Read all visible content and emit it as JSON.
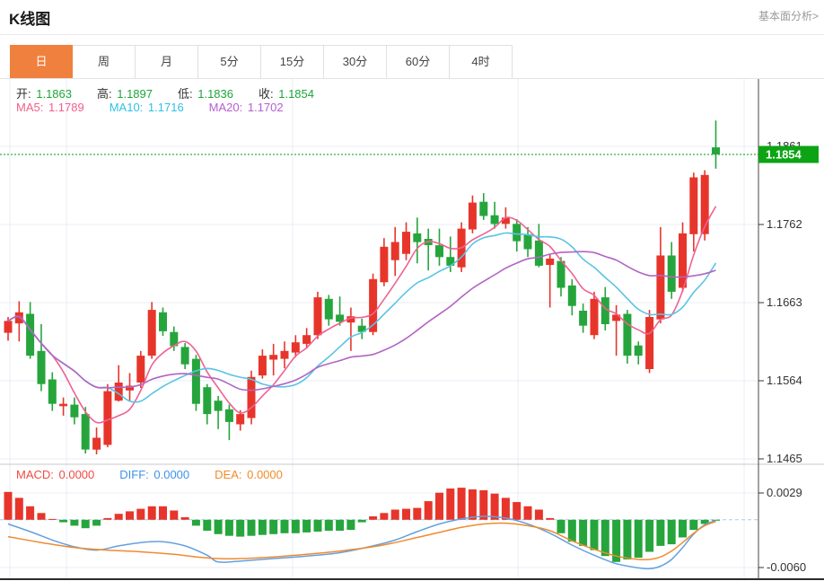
{
  "header": {
    "title": "K线图",
    "link": "基本面分析>"
  },
  "tabs": {
    "items": [
      "日",
      "周",
      "月",
      "5分",
      "15分",
      "30分",
      "60分",
      "4时"
    ],
    "selected": 0
  },
  "ohlc_legend": {
    "items": [
      {
        "label": "开",
        "value": "1.1863"
      },
      {
        "label": "高",
        "value": "1.1897"
      },
      {
        "label": "低",
        "value": "1.1836"
      },
      {
        "label": "收",
        "value": "1.1854"
      }
    ],
    "value_color": "#1ca53a"
  },
  "ma_legend": {
    "items": [
      {
        "label": "MA5",
        "value": "1.1789",
        "color": "#f25f8a"
      },
      {
        "label": "MA10",
        "value": "1.1716",
        "color": "#2fc1e6"
      },
      {
        "label": "MA20",
        "value": "1.1702",
        "color": "#b45fd0"
      }
    ]
  },
  "macd_legend": {
    "items": [
      {
        "label": "MACD",
        "value": "0.0000",
        "color": "#ef4b43"
      },
      {
        "label": "DIFF",
        "value": "0.0000",
        "color": "#3f93ea"
      },
      {
        "label": "DEA",
        "value": "0.0000",
        "color": "#f08b28"
      }
    ]
  },
  "current_price": {
    "value": "1.1854",
    "badge_color": "#0ca414",
    "line_color": "#2db04a"
  },
  "colors": {
    "candle_up": "#e7352b",
    "candle_down": "#26a53c",
    "ma5": "#ef6292",
    "ma10": "#58c4e4",
    "ma20": "#b264c4",
    "diff_line": "#64a0e0",
    "dea_line": "#ef8b30",
    "grid": "#e9eef4",
    "axis_text": "#333333",
    "axis_border": "#444444",
    "separator": "#c9c9c9",
    "bottom_border": "#2b2b2b",
    "zero_dash": "#9fd0e8"
  },
  "chart_data": {
    "type": "candlestick",
    "panels": [
      "price",
      "macd"
    ],
    "price_axis_ticks": [
      "1.1861",
      "1.1762",
      "1.1663",
      "1.1564",
      "1.1465"
    ],
    "macd_axis_ticks": [
      "0.0029",
      "-0.0060"
    ],
    "ylim_price": [
      1.1465,
      1.1861
    ],
    "candles": [
      [
        1.1628,
        1.1648,
        1.1618,
        1.1643
      ],
      [
        1.164,
        1.1668,
        1.1617,
        1.1654
      ],
      [
        1.1652,
        1.1667,
        1.1595,
        1.1599
      ],
      [
        1.1605,
        1.1639,
        1.1554,
        1.1563
      ],
      [
        1.1569,
        1.1578,
        1.1529,
        1.1538
      ],
      [
        1.1535,
        1.1546,
        1.1523,
        1.1538
      ],
      [
        1.1537,
        1.1546,
        1.1512,
        1.1521
      ],
      [
        1.1525,
        1.1534,
        1.1475,
        1.148
      ],
      [
        1.148,
        1.1508,
        1.1474,
        1.1495
      ],
      [
        1.1486,
        1.1563,
        1.1483,
        1.1554
      ],
      [
        1.1542,
        1.1587,
        1.1541,
        1.1565
      ],
      [
        1.1555,
        1.1577,
        1.1541,
        1.1561
      ],
      [
        1.1565,
        1.1605,
        1.1558,
        1.1599
      ],
      [
        1.1599,
        1.1667,
        1.1595,
        1.1657
      ],
      [
        1.1654,
        1.166,
        1.1624,
        1.163
      ],
      [
        1.1629,
        1.1636,
        1.1605,
        1.1611
      ],
      [
        1.161,
        1.1615,
        1.1582,
        1.1588
      ],
      [
        1.1595,
        1.16,
        1.1529,
        1.1538
      ],
      [
        1.1559,
        1.1563,
        1.1512,
        1.1525
      ],
      [
        1.1542,
        1.1548,
        1.1506,
        1.1529
      ],
      [
        1.1531,
        1.1537,
        1.1492,
        1.1515
      ],
      [
        1.1512,
        1.153,
        1.1504,
        1.1525
      ],
      [
        1.152,
        1.158,
        1.1512,
        1.1572
      ],
      [
        1.1574,
        1.1607,
        1.157,
        1.1599
      ],
      [
        1.1594,
        1.1614,
        1.1574,
        1.16
      ],
      [
        1.1595,
        1.1617,
        1.1583,
        1.1605
      ],
      [
        1.1603,
        1.1625,
        1.1597,
        1.1616
      ],
      [
        1.1614,
        1.1634,
        1.1608,
        1.1625
      ],
      [
        1.1625,
        1.168,
        1.162,
        1.1673
      ],
      [
        1.1671,
        1.1676,
        1.1637,
        1.1645
      ],
      [
        1.1651,
        1.1674,
        1.1637,
        1.1642
      ],
      [
        1.1641,
        1.166,
        1.1605,
        1.1649
      ],
      [
        1.1637,
        1.1646,
        1.162,
        1.1629
      ],
      [
        1.1629,
        1.1703,
        1.1625,
        1.1696
      ],
      [
        1.1692,
        1.1748,
        1.1687,
        1.1737
      ],
      [
        1.172,
        1.1762,
        1.17,
        1.1743
      ],
      [
        1.1728,
        1.1768,
        1.172,
        1.1756
      ],
      [
        1.1754,
        1.1774,
        1.1716,
        1.1743
      ],
      [
        1.1747,
        1.176,
        1.1707,
        1.1739
      ],
      [
        1.1739,
        1.176,
        1.1713,
        1.1724
      ],
      [
        1.1724,
        1.175,
        1.1705,
        1.1713
      ],
      [
        1.1711,
        1.1768,
        1.1705,
        1.176
      ],
      [
        1.1759,
        1.1802,
        1.1754,
        1.1793
      ],
      [
        1.1794,
        1.1805,
        1.1771,
        1.1776
      ],
      [
        1.1777,
        1.1794,
        1.176,
        1.1766
      ],
      [
        1.1766,
        1.1787,
        1.176,
        1.1774
      ],
      [
        1.1766,
        1.1772,
        1.1731,
        1.1744
      ],
      [
        1.1753,
        1.1762,
        1.1724,
        1.1734
      ],
      [
        1.1745,
        1.1766,
        1.1711,
        1.1713
      ],
      [
        1.1714,
        1.1728,
        1.166,
        1.1722
      ],
      [
        1.1719,
        1.1724,
        1.1674,
        1.1685
      ],
      [
        1.1688,
        1.1696,
        1.165,
        1.1662
      ],
      [
        1.1656,
        1.1665,
        1.1628,
        1.1637
      ],
      [
        1.1625,
        1.168,
        1.162,
        1.1671
      ],
      [
        1.1673,
        1.1686,
        1.1631,
        1.1639
      ],
      [
        1.1643,
        1.1663,
        1.1599,
        1.1651
      ],
      [
        1.1652,
        1.1657,
        1.1589,
        1.1599
      ],
      [
        1.1612,
        1.1617,
        1.1588,
        1.1599
      ],
      [
        1.1582,
        1.1657,
        1.1577,
        1.1648
      ],
      [
        1.1645,
        1.1762,
        1.164,
        1.1726
      ],
      [
        1.1726,
        1.1743,
        1.1671,
        1.168
      ],
      [
        1.1685,
        1.1768,
        1.168,
        1.1754
      ],
      [
        1.1753,
        1.1831,
        1.1731,
        1.1825
      ],
      [
        1.1753,
        1.1834,
        1.1745,
        1.1828
      ],
      [
        1.1863,
        1.1897,
        1.1836,
        1.1854
      ]
    ],
    "ma_windows": [
      5,
      10,
      20
    ],
    "macd_hist_1e4": [
      33,
      26,
      16,
      8,
      1,
      -3,
      -7,
      -10,
      -7,
      2,
      7,
      10,
      13,
      16,
      16,
      11,
      3,
      -7,
      -13,
      -17,
      -19,
      -20,
      -19,
      -18,
      -17,
      -16,
      -16,
      -15,
      -14,
      -13,
      -13,
      -12,
      -3,
      4,
      8,
      12,
      13,
      14,
      22,
      32,
      37,
      38,
      36,
      35,
      31,
      26,
      21,
      16,
      12,
      2,
      -16,
      -26,
      -31,
      -36,
      -43,
      -50,
      -47,
      -45,
      -38,
      -31,
      -29,
      -21,
      -12,
      -5,
      -1
    ],
    "diff_points_1e4": [
      [
        0,
        -5
      ],
      [
        2,
        -14
      ],
      [
        4,
        -24
      ],
      [
        6,
        -32
      ],
      [
        8,
        -36
      ],
      [
        10,
        -31
      ],
      [
        12,
        -27
      ],
      [
        14,
        -26
      ],
      [
        16,
        -31
      ],
      [
        18,
        -42
      ],
      [
        19,
        -50
      ],
      [
        21,
        -49
      ],
      [
        24,
        -46
      ],
      [
        27,
        -43
      ],
      [
        30,
        -39
      ],
      [
        33,
        -31
      ],
      [
        35,
        -24
      ],
      [
        37,
        -14
      ],
      [
        39,
        -5
      ],
      [
        41,
        1
      ],
      [
        43,
        4
      ],
      [
        45,
        2
      ],
      [
        47,
        -5
      ],
      [
        49,
        -16
      ],
      [
        51,
        -30
      ],
      [
        53,
        -42
      ],
      [
        55,
        -52
      ],
      [
        57,
        -57
      ],
      [
        58,
        -58
      ],
      [
        59,
        -55
      ],
      [
        60,
        -47
      ],
      [
        61,
        -33
      ],
      [
        62,
        -17
      ],
      [
        63,
        -6
      ],
      [
        64,
        -1
      ]
    ],
    "dea_points_1e4": [
      [
        0,
        -20
      ],
      [
        3,
        -27
      ],
      [
        6,
        -33
      ],
      [
        9,
        -36
      ],
      [
        12,
        -38
      ],
      [
        15,
        -41
      ],
      [
        17,
        -44
      ],
      [
        19,
        -46
      ],
      [
        21,
        -46
      ],
      [
        24,
        -44
      ],
      [
        27,
        -41
      ],
      [
        30,
        -37
      ],
      [
        33,
        -32
      ],
      [
        35,
        -27
      ],
      [
        37,
        -21
      ],
      [
        39,
        -15
      ],
      [
        41,
        -9
      ],
      [
        43,
        -5
      ],
      [
        45,
        -4
      ],
      [
        47,
        -7
      ],
      [
        49,
        -13
      ],
      [
        51,
        -25
      ],
      [
        53,
        -35
      ],
      [
        55,
        -43
      ],
      [
        57,
        -47
      ],
      [
        58,
        -47
      ],
      [
        59,
        -44
      ],
      [
        60,
        -37
      ],
      [
        61,
        -27
      ],
      [
        62,
        -16
      ],
      [
        63,
        -7
      ],
      [
        64,
        -2
      ]
    ]
  }
}
